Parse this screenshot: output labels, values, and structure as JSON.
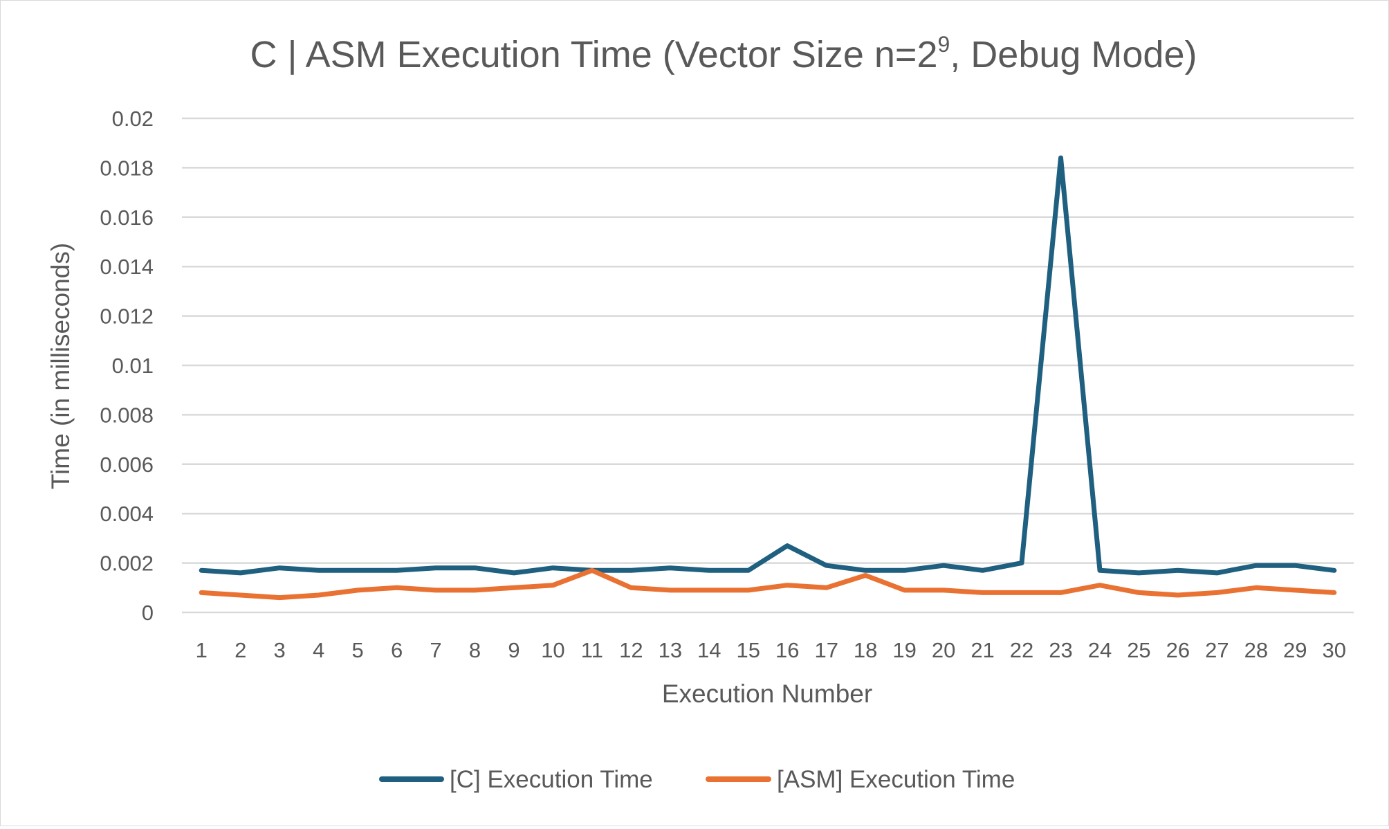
{
  "chart_data": {
    "type": "line",
    "title": {
      "main": "C | ASM Execution Time (Vector Size n=2",
      "superscript": "9",
      "suffix": ", Debug Mode)"
    },
    "xlabel": "Execution Number",
    "ylabel": "Time (in milliseconds)",
    "categories": [
      "1",
      "2",
      "3",
      "4",
      "5",
      "6",
      "7",
      "8",
      "9",
      "10",
      "11",
      "12",
      "13",
      "14",
      "15",
      "16",
      "17",
      "18",
      "19",
      "20",
      "21",
      "22",
      "23",
      "24",
      "25",
      "26",
      "27",
      "28",
      "29",
      "30"
    ],
    "ylim": [
      0,
      0.02
    ],
    "yticks": [
      0,
      0.002,
      0.004,
      0.006,
      0.008,
      0.01,
      0.012,
      0.014,
      0.016,
      0.018,
      0.02
    ],
    "ytick_labels": [
      "0",
      "0.002",
      "0.004",
      "0.006",
      "0.008",
      "0.01",
      "0.012",
      "0.014",
      "0.016",
      "0.018",
      "0.02"
    ],
    "grid": "horizontal",
    "legend_position": "bottom",
    "series": [
      {
        "name": "[C] Execution Time",
        "color": "#1f5f7f",
        "values": [
          0.0017,
          0.0016,
          0.0018,
          0.0017,
          0.0017,
          0.0017,
          0.0018,
          0.0018,
          0.0016,
          0.0018,
          0.0017,
          0.0017,
          0.0018,
          0.0017,
          0.0017,
          0.0027,
          0.0019,
          0.0017,
          0.0017,
          0.0019,
          0.0017,
          0.002,
          0.0184,
          0.0017,
          0.0016,
          0.0017,
          0.0016,
          0.0019,
          0.0019,
          0.0017
        ]
      },
      {
        "name": "[ASM] Execution Time",
        "color": "#e97132",
        "values": [
          0.0008,
          0.0007,
          0.0006,
          0.0007,
          0.0009,
          0.001,
          0.0009,
          0.0009,
          0.001,
          0.0011,
          0.0017,
          0.001,
          0.0009,
          0.0009,
          0.0009,
          0.0011,
          0.001,
          0.0015,
          0.0009,
          0.0009,
          0.0008,
          0.0008,
          0.0008,
          0.0011,
          0.0008,
          0.0007,
          0.0008,
          0.001,
          0.0009,
          0.0008
        ]
      }
    ],
    "gridline_color": "#d9d9d9"
  }
}
